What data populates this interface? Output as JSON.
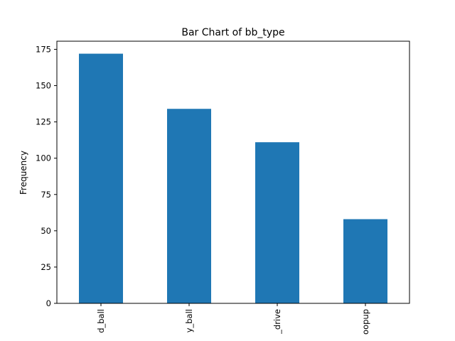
{
  "chart_data": {
    "type": "bar",
    "title": "Bar Chart of bb_type",
    "xlabel": "",
    "ylabel": "Frequency",
    "categories": [
      "d_ball",
      "y_ball",
      "_drive",
      "oopup"
    ],
    "values": [
      172,
      134,
      111,
      58
    ],
    "ylim": [
      0,
      180.6
    ],
    "yticks": [
      0,
      25,
      50,
      75,
      100,
      125,
      150,
      175
    ],
    "grid": false,
    "bar_color": "#1f77b4"
  }
}
